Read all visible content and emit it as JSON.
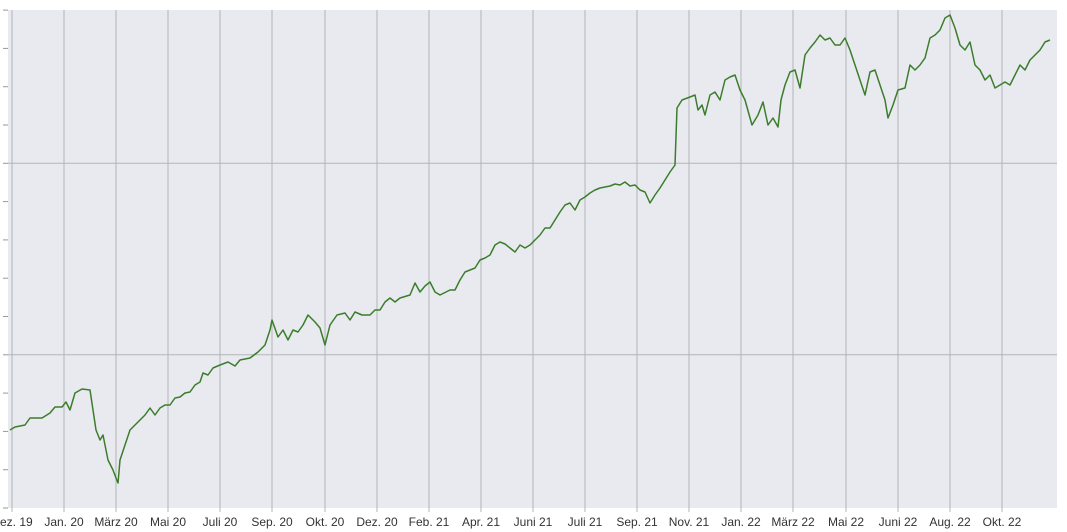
{
  "chart_data": {
    "type": "line",
    "color": "#3b7d2b",
    "grid": true,
    "xlim": [
      -4,
      1045
    ],
    "xticks": [
      {
        "value": 0,
        "label": "ez. 19"
      },
      {
        "value": 52,
        "label": "Jan. 20"
      },
      {
        "value": 104,
        "label": "März 20"
      },
      {
        "value": 156,
        "label": "Mai 20"
      },
      {
        "value": 208,
        "label": "Juli 20"
      },
      {
        "value": 260,
        "label": "Sep. 20"
      },
      {
        "value": 313,
        "label": "Okt. 20"
      },
      {
        "value": 365,
        "label": "Dez. 20"
      },
      {
        "value": 417,
        "label": "Feb. 21"
      },
      {
        "value": 469,
        "label": "Apr. 21"
      },
      {
        "value": 521,
        "label": "Juni 21"
      },
      {
        "value": 573,
        "label": "Juli 21"
      },
      {
        "value": 625,
        "label": "Sep. 21"
      },
      {
        "value": 677,
        "label": "Nov. 21"
      },
      {
        "value": 729,
        "label": "Jan. 22"
      },
      {
        "value": 781,
        "label": "März 22"
      },
      {
        "value": 834,
        "label": "Mai 22"
      },
      {
        "value": 886,
        "label": "Juni 22"
      },
      {
        "value": 938,
        "label": "Aug. 22"
      },
      {
        "value": 990,
        "label": "Okt. 22"
      }
    ],
    "ylim": [
      0,
      498
    ],
    "yticks": [
      0,
      38.3,
      76.6,
      114.9,
      153.2,
      191.5,
      229.8,
      268.1,
      306.4,
      344.7,
      383,
      421.3,
      459.6,
      497.9
    ],
    "x": [
      -2,
      3,
      13,
      18,
      30,
      38,
      43,
      50,
      54,
      58,
      63,
      70,
      78,
      81,
      84,
      88,
      91,
      96,
      101,
      104,
      106,
      108,
      113,
      118,
      123,
      128,
      133,
      138,
      143,
      148,
      153,
      158,
      163,
      168,
      173,
      178,
      183,
      188,
      191,
      196,
      201,
      208,
      216,
      223,
      228,
      238,
      246,
      253,
      258,
      260,
      266,
      271,
      276,
      281,
      286,
      291,
      296,
      303,
      308,
      313,
      318,
      325,
      333,
      338,
      343,
      350,
      358,
      363,
      368,
      373,
      378,
      383,
      388,
      398,
      403,
      408,
      413,
      418,
      423,
      428,
      438,
      443,
      448,
      453,
      458,
      463,
      468,
      473,
      478,
      483,
      488,
      493,
      498,
      503,
      508,
      513,
      518,
      523,
      528,
      533,
      538,
      543,
      548,
      553,
      558,
      563,
      568,
      573,
      578,
      583,
      588,
      593,
      598,
      603,
      608,
      613,
      618,
      623,
      628,
      633,
      638,
      643,
      648,
      653,
      658,
      663,
      665,
      670,
      678,
      683,
      686,
      690,
      693,
      698,
      703,
      708,
      713,
      718,
      723,
      728,
      733,
      740,
      746,
      751,
      756,
      761,
      766,
      769,
      773,
      778,
      783,
      788,
      793,
      798,
      803,
      808,
      813,
      818,
      823,
      828,
      833,
      838,
      843,
      848,
      853,
      858,
      863,
      868,
      873,
      876,
      881,
      886,
      893,
      898,
      903,
      908,
      913,
      918,
      923,
      928,
      933,
      938,
      943,
      948,
      953,
      958,
      963,
      968,
      973,
      978,
      983,
      988,
      993,
      998,
      1003,
      1008,
      1013,
      1018,
      1023,
      1028,
      1033,
      1038
    ],
    "values": [
      78,
      81,
      83,
      90,
      90,
      95,
      101,
      101,
      106,
      98,
      115,
      119,
      118,
      98,
      78,
      68,
      73,
      48,
      38,
      30,
      25,
      48,
      63,
      78,
      83,
      88,
      93,
      100,
      93,
      100,
      103,
      103,
      110,
      111,
      115,
      116,
      123,
      126,
      135,
      133,
      140,
      143,
      146,
      142,
      148,
      150,
      156,
      163,
      178,
      188,
      171,
      178,
      168,
      178,
      176,
      183,
      193,
      186,
      180,
      163,
      183,
      193,
      195,
      188,
      196,
      193,
      193,
      198,
      198,
      206,
      210,
      206,
      210,
      213,
      225,
      216,
      222,
      226,
      216,
      213,
      218,
      218,
      228,
      236,
      238,
      240,
      248,
      250,
      253,
      263,
      266,
      264,
      260,
      256,
      263,
      260,
      263,
      268,
      273,
      280,
      280,
      288,
      296,
      303,
      305,
      298,
      308,
      311,
      315,
      318,
      320,
      321,
      322,
      324,
      323,
      326,
      322,
      323,
      318,
      316,
      305,
      313,
      320,
      328,
      336,
      343,
      400,
      408,
      411,
      413,
      398,
      403,
      393,
      413,
      416,
      408,
      428,
      431,
      433,
      418,
      408,
      383,
      393,
      406,
      383,
      390,
      381,
      408,
      423,
      436,
      438,
      420,
      453,
      460,
      466,
      473,
      468,
      470,
      463,
      463,
      470,
      458,
      443,
      428,
      413,
      436,
      438,
      423,
      408,
      390,
      403,
      418,
      420,
      443,
      438,
      443,
      450,
      470,
      473,
      478,
      490,
      493,
      480,
      463,
      458,
      466,
      443,
      438,
      428,
      433,
      420,
      423,
      426,
      423,
      433,
      443,
      438,
      448,
      453,
      458,
      466,
      468
    ]
  }
}
